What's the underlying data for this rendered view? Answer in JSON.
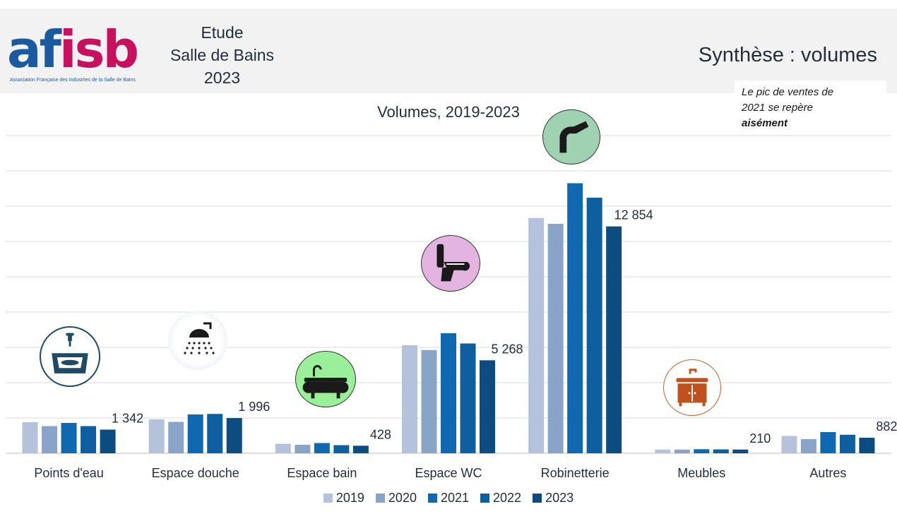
{
  "header": {
    "logo_text_a": "af",
    "logo_text_b": "isb",
    "logo_subtitle": "Association Française des Industries de la Salle de Bains",
    "study_line1": "Etude",
    "study_line2": "Salle de Bains",
    "study_line3": "2023",
    "slide_title": "Synthèse : volumes"
  },
  "note": {
    "line1": "Le pic de ventes de",
    "line2": "2021 se repère",
    "line3": "aisément"
  },
  "icons": {
    "points_eau": "washbasin-icon",
    "douche": "shower-icon",
    "bain": "bathtub-icon",
    "wc": "toilet-icon",
    "robinetterie": "faucet-icon",
    "meubles": "vanity-cabinet-icon"
  },
  "colors": {
    "2019": "#b4c2dc",
    "2020": "#8aa3c8",
    "2021": "#1068b0",
    "2022": "#0e5ea0",
    "2023": "#0c4c80"
  },
  "chart_data": {
    "type": "bar",
    "title": "Volumes, 2019-2023",
    "categories": [
      "Points d'eau",
      "Espace douche",
      "Espace bain",
      "Espace WC",
      "Robinetterie",
      "Meubles",
      "Autres"
    ],
    "series": [
      {
        "name": "2019",
        "values": [
          1760,
          1920,
          540,
          6120,
          13330,
          210,
          980
        ]
      },
      {
        "name": "2020",
        "values": [
          1540,
          1780,
          480,
          5850,
          13000,
          210,
          800
        ]
      },
      {
        "name": "2021",
        "values": [
          1720,
          2200,
          580,
          6800,
          15300,
          230,
          1200
        ]
      },
      {
        "name": "2022",
        "values": [
          1540,
          2230,
          460,
          6220,
          14480,
          220,
          1050
        ]
      },
      {
        "name": "2023",
        "values": [
          1342,
          1996,
          428,
          5268,
          12854,
          210,
          882
        ]
      }
    ],
    "data_labels": [
      "1 342",
      "1 996",
      "428",
      "5 268",
      "12 854",
      "210",
      "882"
    ],
    "xlabel": "",
    "ylabel": "",
    "ylim": [
      0,
      18000
    ],
    "grid": true,
    "legend": "bottom-center"
  }
}
